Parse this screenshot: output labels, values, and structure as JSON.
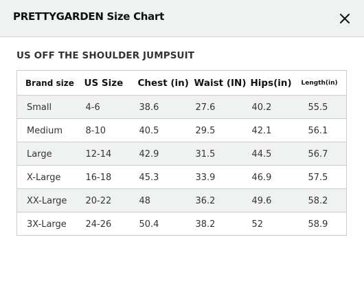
{
  "modal": {
    "title": "PRETTYGARDEN Size Chart",
    "close_icon": "close-icon"
  },
  "section": {
    "title": "US OFF THE SHOULDER JUMPSUIT"
  },
  "table": {
    "headers": [
      "Brand size",
      "US Size",
      "Chest (in)",
      "Waist (IN)",
      "Hips(in)",
      "Length(in)"
    ],
    "rows": [
      [
        "Small",
        "4-6",
        "38.6",
        "27.6",
        "40.2",
        "55.5"
      ],
      [
        "Medium",
        "8-10",
        "40.5",
        "29.5",
        "42.1",
        "56.1"
      ],
      [
        "Large",
        "12-14",
        "42.9",
        "31.5",
        "44.5",
        "56.7"
      ],
      [
        "X-Large",
        "16-18",
        "45.3",
        "33.9",
        "46.9",
        "57.5"
      ],
      [
        "XX-Large",
        "20-22",
        "48",
        "36.2",
        "49.6",
        "58.2"
      ],
      [
        "3X-Large",
        "24-26",
        "50.4",
        "38.2",
        "52",
        "58.9"
      ]
    ]
  },
  "colors": {
    "header_bg": "#f0f2f2",
    "stripe_bg": "#f0f2f2",
    "border": "#c9cccc",
    "text": "#0f1111"
  }
}
